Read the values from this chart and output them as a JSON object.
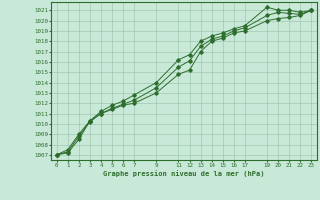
{
  "title": "Graphe pression niveau de la mer (hPa)",
  "bg_color": "#c8e8d8",
  "grid_color": "#a0c8b0",
  "line_color": "#2d6e2d",
  "xlim": [
    -0.5,
    23.5
  ],
  "ylim": [
    1006.5,
    1021.8
  ],
  "yticks": [
    1007,
    1008,
    1009,
    1010,
    1011,
    1012,
    1013,
    1014,
    1015,
    1016,
    1017,
    1018,
    1019,
    1020,
    1021
  ],
  "xtick_labels": [
    "0",
    "1",
    "2",
    "3",
    "4",
    "5",
    "6",
    "7",
    "9",
    "11",
    "12",
    "13",
    "14",
    "15",
    "16",
    "17",
    "19",
    "20",
    "21",
    "22",
    "23"
  ],
  "xtick_positions": [
    0,
    1,
    2,
    3,
    4,
    5,
    6,
    7,
    9,
    11,
    12,
    13,
    14,
    15,
    16,
    17,
    19,
    20,
    21,
    22,
    23
  ],
  "line1_x": [
    0,
    1,
    2,
    3,
    4,
    5,
    6,
    7,
    9,
    11,
    12,
    13,
    14,
    15,
    16,
    17,
    19,
    20,
    21,
    22,
    23
  ],
  "line1_y": [
    1007.0,
    1007.5,
    1009.0,
    1010.3,
    1011.2,
    1011.8,
    1012.2,
    1012.8,
    1014.0,
    1016.2,
    1016.7,
    1018.0,
    1018.5,
    1018.8,
    1019.2,
    1019.5,
    1021.3,
    1021.0,
    1021.0,
    1020.8,
    1021.0
  ],
  "line2_x": [
    0,
    1,
    2,
    3,
    4,
    5,
    6,
    7,
    9,
    11,
    12,
    13,
    14,
    15,
    16,
    17,
    19,
    20,
    21,
    22,
    23
  ],
  "line2_y": [
    1007.0,
    1007.3,
    1008.8,
    1010.2,
    1011.0,
    1011.5,
    1011.9,
    1012.3,
    1013.5,
    1015.5,
    1016.1,
    1017.5,
    1018.2,
    1018.5,
    1019.0,
    1019.3,
    1020.5,
    1020.8,
    1020.7,
    1020.6,
    1021.0
  ],
  "line3_x": [
    0,
    1,
    2,
    3,
    4,
    5,
    6,
    7,
    9,
    11,
    12,
    13,
    14,
    15,
    16,
    17,
    19,
    20,
    21,
    22,
    23
  ],
  "line3_y": [
    1007.0,
    1007.2,
    1008.5,
    1010.3,
    1011.0,
    1011.4,
    1011.8,
    1012.0,
    1013.0,
    1014.8,
    1015.2,
    1017.0,
    1018.0,
    1018.3,
    1018.8,
    1019.0,
    1020.0,
    1020.2,
    1020.3,
    1020.5,
    1021.0
  ]
}
